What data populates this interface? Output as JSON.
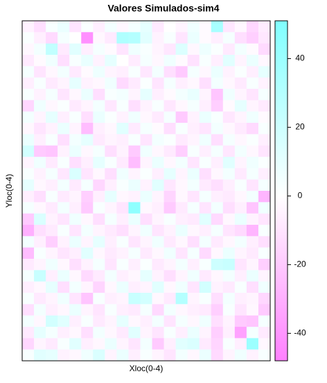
{
  "chart_data": {
    "type": "heatmap",
    "title": "Valores Simulados-sim4",
    "x_label": "Xloc(0-4)",
    "y_label": "Yloc(0-4)",
    "colors": {
      "low": "#ff80ff",
      "mid": "#ffffff",
      "high": "#80ffff"
    },
    "zlim": [
      -48,
      51
    ],
    "zticks": [
      -40,
      -20,
      0,
      20,
      40
    ],
    "z": [
      [
        -5,
        -12,
        3,
        8,
        -10,
        2,
        -6,
        5,
        -3,
        4,
        10,
        -8,
        0,
        -4,
        6,
        -2,
        35,
        -9,
        -3,
        -15,
        -7
      ],
      [
        2,
        -6,
        -14,
        4,
        0,
        -42,
        -3,
        -8,
        32,
        30,
        12,
        -5,
        3,
        -10,
        8,
        -2,
        -6,
        4,
        -12,
        -18,
        -9
      ],
      [
        -3,
        5,
        25,
        -8,
        12,
        -6,
        4,
        -2,
        -10,
        6,
        3,
        -4,
        -9,
        14,
        -3,
        7,
        2,
        -8,
        5,
        -2,
        -14
      ],
      [
        -8,
        -2,
        6,
        -12,
        3,
        9,
        -5,
        10,
        0,
        -7,
        4,
        -3,
        6,
        -2,
        -11,
        3,
        -6,
        12,
        -4,
        8,
        -3
      ],
      [
        4,
        -10,
        -3,
        5,
        -8,
        -2,
        7,
        -4,
        -6,
        3,
        -9,
        5,
        -12,
        -20,
        4,
        -3,
        8,
        -5,
        2,
        -6,
        10
      ],
      [
        -6,
        3,
        -8,
        -4,
        10,
        -5,
        -3,
        6,
        -14,
        -8,
        2,
        -10,
        4,
        -6,
        -3,
        -12,
        5,
        -3,
        -8,
        3,
        -5
      ],
      [
        3,
        -5,
        4,
        -10,
        -3,
        8,
        -12,
        3,
        5,
        -4,
        10,
        -6,
        -2,
        5,
        9,
        -4,
        -22,
        6,
        -4,
        -10,
        4
      ],
      [
        -15,
        6,
        -3,
        2,
        -8,
        -4,
        5,
        -9,
        3,
        -12,
        -5,
        3,
        -9,
        -3,
        4,
        -6,
        -18,
        -2,
        10,
        -4,
        -8
      ],
      [
        5,
        -4,
        10,
        -6,
        3,
        -12,
        8,
        2,
        -5,
        6,
        -3,
        -8,
        4,
        -20,
        -5,
        8,
        3,
        -9,
        -4,
        6,
        -2
      ],
      [
        -3,
        -10,
        -5,
        8,
        -4,
        -25,
        -6,
        -3,
        12,
        -8,
        4,
        -2,
        -12,
        3,
        -6,
        -10,
        5,
        -3,
        -8,
        -14,
        3
      ],
      [
        8,
        -6,
        3,
        -12,
        5,
        10,
        -8,
        -4,
        -6,
        3,
        -10,
        5,
        2,
        -8,
        -4,
        6,
        -12,
        4,
        -3,
        2,
        -6
      ],
      [
        18,
        -20,
        -22,
        -5,
        8,
        -3,
        4,
        -12,
        -5,
        -20,
        6,
        -3,
        -8,
        -18,
        3,
        -6,
        4,
        -9,
        5,
        -3,
        -10
      ],
      [
        -4,
        6,
        -8,
        3,
        -12,
        -6,
        10,
        3,
        -8,
        -25,
        -4,
        8,
        -3,
        5,
        -10,
        3,
        -6,
        12,
        -4,
        6,
        2
      ],
      [
        3,
        -5,
        4,
        -9,
        15,
        -10,
        -3,
        -12,
        6,
        -4,
        2,
        -6,
        10,
        -4,
        8,
        -12,
        -3,
        5,
        -8,
        4,
        -6
      ],
      [
        10,
        -3,
        -6,
        5,
        -8,
        4,
        -15,
        -6,
        3,
        8,
        -5,
        12,
        -9,
        -3,
        5,
        -8,
        -12,
        -6,
        3,
        -10,
        4
      ],
      [
        -6,
        -12,
        3,
        -8,
        -4,
        -18,
        -6,
        10,
        -3,
        -5,
        8,
        -4,
        -16,
        -3,
        -10,
        4,
        -6,
        -8,
        -3,
        5,
        -28
      ],
      [
        4,
        -3,
        -8,
        5,
        -6,
        -20,
        3,
        -4,
        -10,
        45,
        -3,
        -6,
        -20,
        -8,
        4,
        -10,
        5,
        -12,
        -6,
        -22,
        6
      ],
      [
        -20,
        15,
        -5,
        -10,
        6,
        -3,
        -12,
        4,
        -6,
        8,
        -12,
        -4,
        3,
        -6,
        -8,
        12,
        -14,
        -3,
        8,
        -5,
        -10
      ],
      [
        -30,
        -12,
        -8,
        3,
        -10,
        5,
        -4,
        -8,
        -12,
        -4,
        6,
        -10,
        -5,
        8,
        -3,
        -6,
        4,
        -10,
        -14,
        -28,
        3
      ],
      [
        5,
        -6,
        -18,
        -5,
        8,
        -4,
        10,
        -6,
        3,
        -10,
        -4,
        6,
        -8,
        -3,
        -12,
        5,
        -8,
        -3,
        5,
        -6,
        -12
      ],
      [
        -25,
        3,
        -4,
        -10,
        -6,
        12,
        -3,
        -8,
        -5,
        4,
        -8,
        -3,
        6,
        -10,
        4,
        -14,
        -3,
        8,
        -4,
        -8,
        3
      ],
      [
        -8,
        -4,
        6,
        -3,
        -12,
        -5,
        4,
        -10,
        3,
        -6,
        2,
        -8,
        -4,
        5,
        -6,
        3,
        20,
        22,
        -10,
        -4,
        -18
      ],
      [
        4,
        22,
        -6,
        8,
        -3,
        -14,
        -8,
        5,
        -6,
        -3,
        10,
        -5,
        -12,
        -4,
        6,
        -8,
        -3,
        5,
        -6,
        8,
        -4
      ],
      [
        -6,
        -3,
        10,
        -12,
        5,
        -4,
        -16,
        -3,
        8,
        -6,
        -4,
        12,
        -3,
        6,
        -10,
        18,
        -5,
        -8,
        3,
        -12,
        6
      ],
      [
        3,
        -8,
        -4,
        6,
        -10,
        -22,
        3,
        -6,
        -4,
        22,
        18,
        -3,
        -8,
        30,
        -4,
        3,
        -12,
        5,
        -6,
        -4,
        -15
      ],
      [
        -12,
        5,
        -6,
        -3,
        8,
        -4,
        -10,
        3,
        -6,
        -8,
        4,
        -14,
        5,
        -3,
        -6,
        -8,
        -18,
        3,
        -10,
        -3,
        -20
      ],
      [
        5,
        -3,
        18,
        12,
        -6,
        3,
        -8,
        -4,
        10,
        -3,
        -6,
        5,
        -10,
        4,
        -3,
        6,
        -12,
        -5,
        -20,
        -22,
        4
      ],
      [
        -8,
        10,
        4,
        -6,
        -3,
        -12,
        5,
        -3,
        -8,
        12,
        -4,
        -10,
        3,
        -6,
        8,
        -4,
        -18,
        -6,
        -35,
        4,
        -8
      ],
      [
        -15,
        -4,
        -8,
        3,
        12,
        -6,
        -3,
        8,
        -4,
        -10,
        5,
        -20,
        -6,
        12,
        15,
        -8,
        -16,
        3,
        -6,
        40,
        -3
      ],
      [
        3,
        12,
        10,
        -5,
        -3,
        6,
        15,
        -4,
        8,
        -6,
        3,
        -4,
        -10,
        5,
        -3,
        8,
        -14,
        -4,
        6,
        -5,
        3
      ]
    ]
  }
}
